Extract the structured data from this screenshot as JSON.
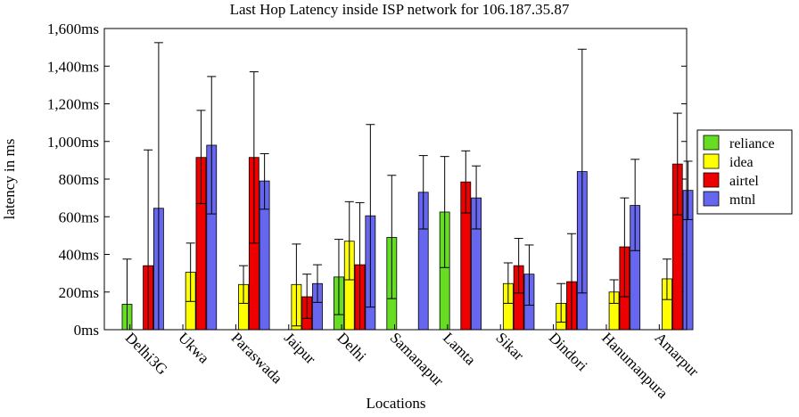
{
  "chart_data": {
    "type": "bar",
    "title": "Last Hop Latency inside ISP network for 106.187.35.87",
    "xlabel": "Locations",
    "ylabel": "latency in ms",
    "ylim": [
      0,
      1600
    ],
    "yticks": [
      0,
      200,
      400,
      600,
      800,
      1000,
      1200,
      1400,
      1600
    ],
    "ytick_labels": [
      "0ms",
      "200ms",
      "400ms",
      "600ms",
      "800ms",
      "1,000ms",
      "1,200ms",
      "1,400ms",
      "1,600ms"
    ],
    "grid": false,
    "legend_position": "right",
    "categories": [
      "Delhi3G",
      "Ukwa",
      "Paraswada",
      "Jaipur",
      "Delhi",
      "Samanapur",
      "Lamta",
      "Sikar",
      "Dindori",
      "Hanumanpura",
      "Amarpur"
    ],
    "series": [
      {
        "name": "reliance",
        "color": "#66dd22",
        "values": [
          135,
          null,
          null,
          null,
          280,
          490,
          625,
          null,
          null,
          null,
          null
        ],
        "err_low": [
          0,
          null,
          null,
          null,
          80,
          165,
          330,
          null,
          null,
          null,
          null
        ],
        "err_high": [
          375,
          null,
          null,
          null,
          480,
          820,
          920,
          null,
          null,
          null,
          null
        ]
      },
      {
        "name": "idea",
        "color": "#ffff00",
        "values": [
          null,
          305,
          240,
          240,
          470,
          null,
          null,
          245,
          140,
          200,
          270
        ],
        "err_low": [
          null,
          150,
          140,
          20,
          265,
          null,
          null,
          140,
          40,
          140,
          160
        ],
        "err_high": [
          null,
          460,
          340,
          455,
          680,
          null,
          null,
          355,
          245,
          265,
          375
        ]
      },
      {
        "name": "airtel",
        "color": "#ee0000",
        "values": [
          340,
          915,
          915,
          175,
          345,
          null,
          785,
          340,
          255,
          440,
          880
        ],
        "err_low": [
          0,
          670,
          460,
          60,
          0,
          null,
          620,
          195,
          0,
          175,
          610
        ],
        "err_high": [
          955,
          1165,
          1370,
          295,
          675,
          null,
          950,
          485,
          510,
          700,
          1150
        ]
      },
      {
        "name": "mtnl",
        "color": "#6666ee",
        "values": [
          645,
          980,
          790,
          245,
          605,
          730,
          700,
          295,
          840,
          660,
          740
        ],
        "err_low": [
          0,
          615,
          640,
          145,
          120,
          535,
          535,
          130,
          195,
          420,
          585
        ],
        "err_high": [
          1525,
          1345,
          935,
          345,
          1090,
          925,
          870,
          450,
          1490,
          905,
          895
        ]
      }
    ]
  }
}
